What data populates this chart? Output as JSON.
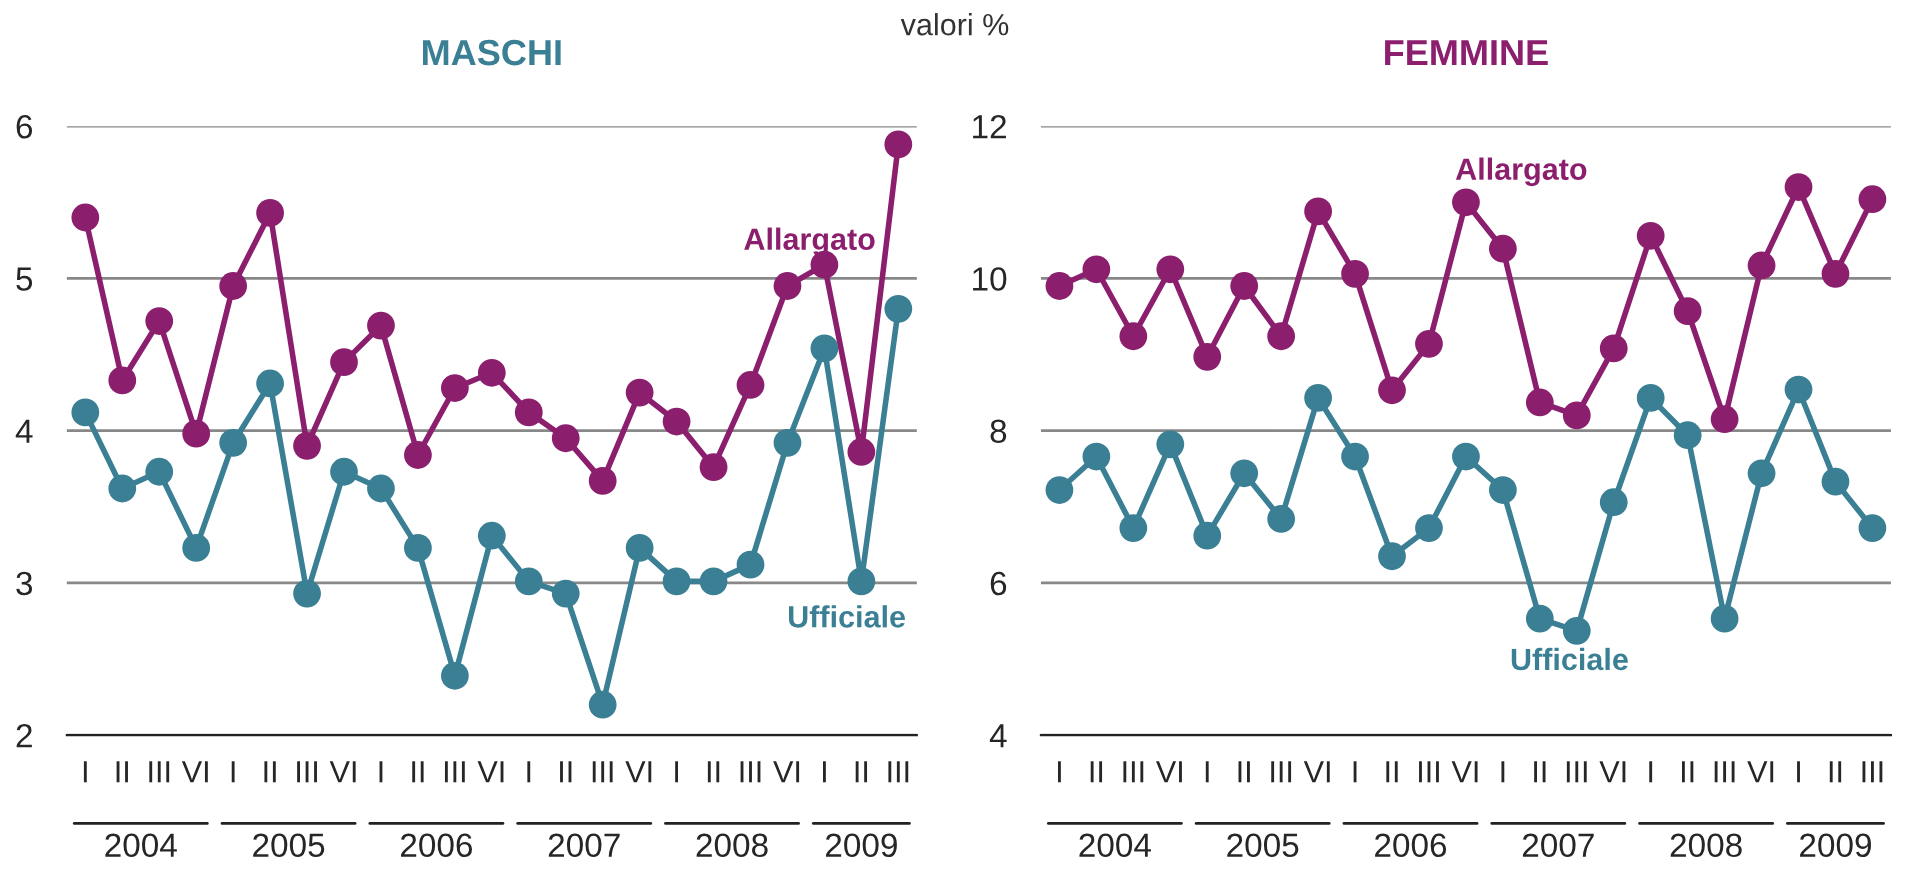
{
  "chart_data": [
    {
      "type": "line",
      "title": "MASCHI",
      "annotations": [
        "valori %",
        "2004",
        "2005",
        "2006",
        "2007",
        "2008",
        "2009"
      ],
      "categories": [
        "I",
        "II",
        "III",
        "VI",
        "I",
        "II",
        "III",
        "VI",
        "I",
        "II",
        "III",
        "VI",
        "I",
        "II",
        "III",
        "VI",
        "I",
        "II",
        "III",
        "VI",
        "I",
        "II",
        "III"
      ],
      "series": [
        {
          "name": "Allargato",
          "color": "#8b1f6e",
          "values": [
            5.4,
            4.33,
            4.72,
            3.98,
            4.95,
            5.43,
            3.9,
            4.45,
            4.69,
            3.84,
            4.28,
            4.38,
            4.12,
            3.95,
            3.67,
            4.25,
            4.06,
            3.76,
            4.3,
            4.95,
            5.09,
            3.86,
            5.88
          ]
        },
        {
          "name": "Ufficiale",
          "color": "#3a7f94",
          "values": [
            4.12,
            3.62,
            3.73,
            3.23,
            3.92,
            4.31,
            2.93,
            3.73,
            3.62,
            3.23,
            2.39,
            3.31,
            3.01,
            2.93,
            2.2,
            3.23,
            3.01,
            3.01,
            3.12,
            3.92,
            4.54,
            3.01,
            4.8
          ]
        }
      ],
      "ylim": [
        2,
        6
      ],
      "yticks": [
        2,
        3,
        4,
        5,
        6
      ],
      "grid": "y",
      "marker": "circle",
      "line_style": "solid",
      "legend": false
    },
    {
      "type": "line",
      "title": "FEMMINE",
      "annotations": [
        "2004",
        "2005",
        "2006",
        "2007",
        "2008",
        "2009"
      ],
      "categories": [
        "I",
        "II",
        "III",
        "VI",
        "I",
        "II",
        "III",
        "VI",
        "I",
        "II",
        "III",
        "VI",
        "I",
        "II",
        "III",
        "VI",
        "I",
        "II",
        "III",
        "VI",
        "I",
        "II",
        "III"
      ],
      "series": [
        {
          "name": "Allargato",
          "color": "#8b1f6e",
          "values": [
            9.9,
            10.12,
            9.24,
            10.12,
            8.97,
            9.9,
            9.24,
            10.88,
            10.06,
            8.53,
            9.14,
            11.0,
            10.39,
            8.37,
            8.2,
            9.08,
            10.56,
            9.57,
            8.15,
            10.17,
            11.2,
            10.06,
            11.04
          ]
        },
        {
          "name": "Ufficiale",
          "color": "#3a7f94",
          "values": [
            7.22,
            7.66,
            6.72,
            7.82,
            6.62,
            7.44,
            6.84,
            8.43,
            7.66,
            6.35,
            6.72,
            7.66,
            7.22,
            5.53,
            5.37,
            7.06,
            8.43,
            7.94,
            5.53,
            7.44,
            8.54,
            7.33,
            6.72
          ]
        }
      ],
      "ylim": [
        4,
        12
      ],
      "yticks": [
        4,
        6,
        8,
        10,
        12
      ],
      "grid": "y",
      "marker": "circle",
      "line_style": "solid",
      "legend": false
    }
  ]
}
